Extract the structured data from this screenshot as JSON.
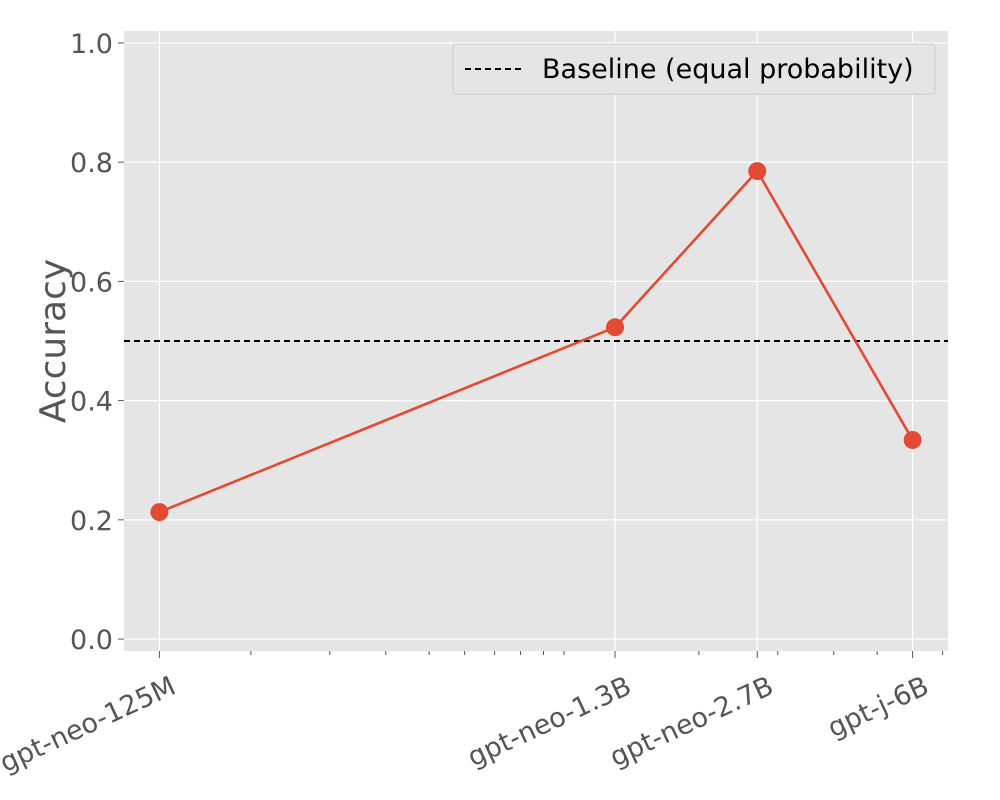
{
  "chart_data": {
    "type": "line",
    "title": "",
    "xlabel": "",
    "ylabel": "Accuracy",
    "x_scale": "log",
    "categories": [
      "gpt-neo-125M",
      "gpt-neo-1.3B",
      "gpt-neo-2.7B",
      "gpt-j-6B"
    ],
    "x": [
      125000000,
      1300000000,
      2700000000,
      6000000000
    ],
    "series": [
      {
        "name": "",
        "values": [
          0.213,
          0.523,
          0.785,
          0.334
        ],
        "color": "#E24A33"
      }
    ],
    "reference_lines": [
      {
        "name": "Baseline (equal probability)",
        "y": 0.5,
        "style": "dashed",
        "color": "#000000"
      }
    ],
    "ylim": [
      -0.02,
      1.02
    ],
    "yticks": [
      "0.0",
      "0.2",
      "0.4",
      "0.6",
      "0.8",
      "1.0"
    ],
    "ytick_values": [
      0.0,
      0.2,
      0.4,
      0.6,
      0.8,
      1.0
    ],
    "grid": true,
    "legend_position": "top-right",
    "plot_background": "#E5E5E5"
  }
}
